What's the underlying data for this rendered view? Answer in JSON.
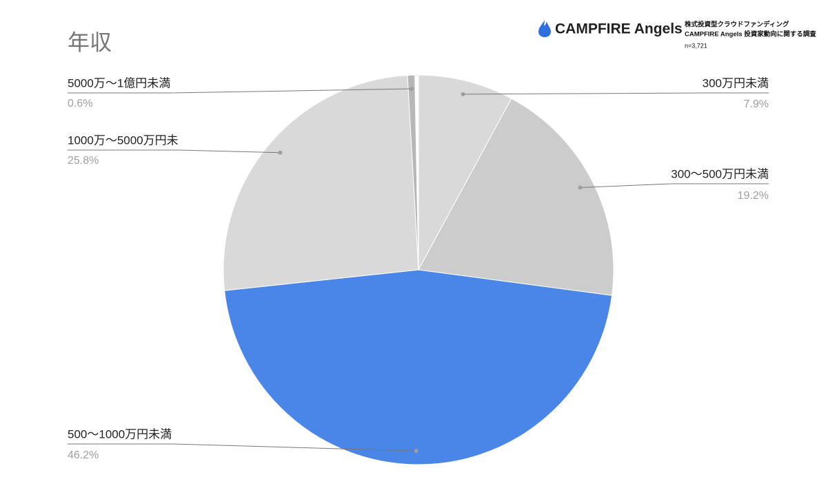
{
  "chart_data": {
    "type": "pie",
    "title": "年収",
    "brand": "CAMPFIRE Angels",
    "source_lines": [
      "株式投資型クラウドファンディング",
      "CAMPFIRE Angels 投資家動向に関する調査",
      "n=3,721"
    ],
    "categories": [
      "300万円未満",
      "300〜500万円未満",
      "500〜1000万円未満",
      "1000万〜5000万円未",
      "5000万〜1億円未満"
    ],
    "values": [
      7.9,
      19.2,
      46.2,
      25.8,
      0.6
    ],
    "value_labels": [
      "7.9%",
      "19.2%",
      "46.2%",
      "25.8%",
      "0.6%"
    ],
    "colors": [
      "#d9d9d9",
      "#cccccc",
      "#4a86e8",
      "#d9d9d9",
      "#b7b7b7"
    ]
  }
}
